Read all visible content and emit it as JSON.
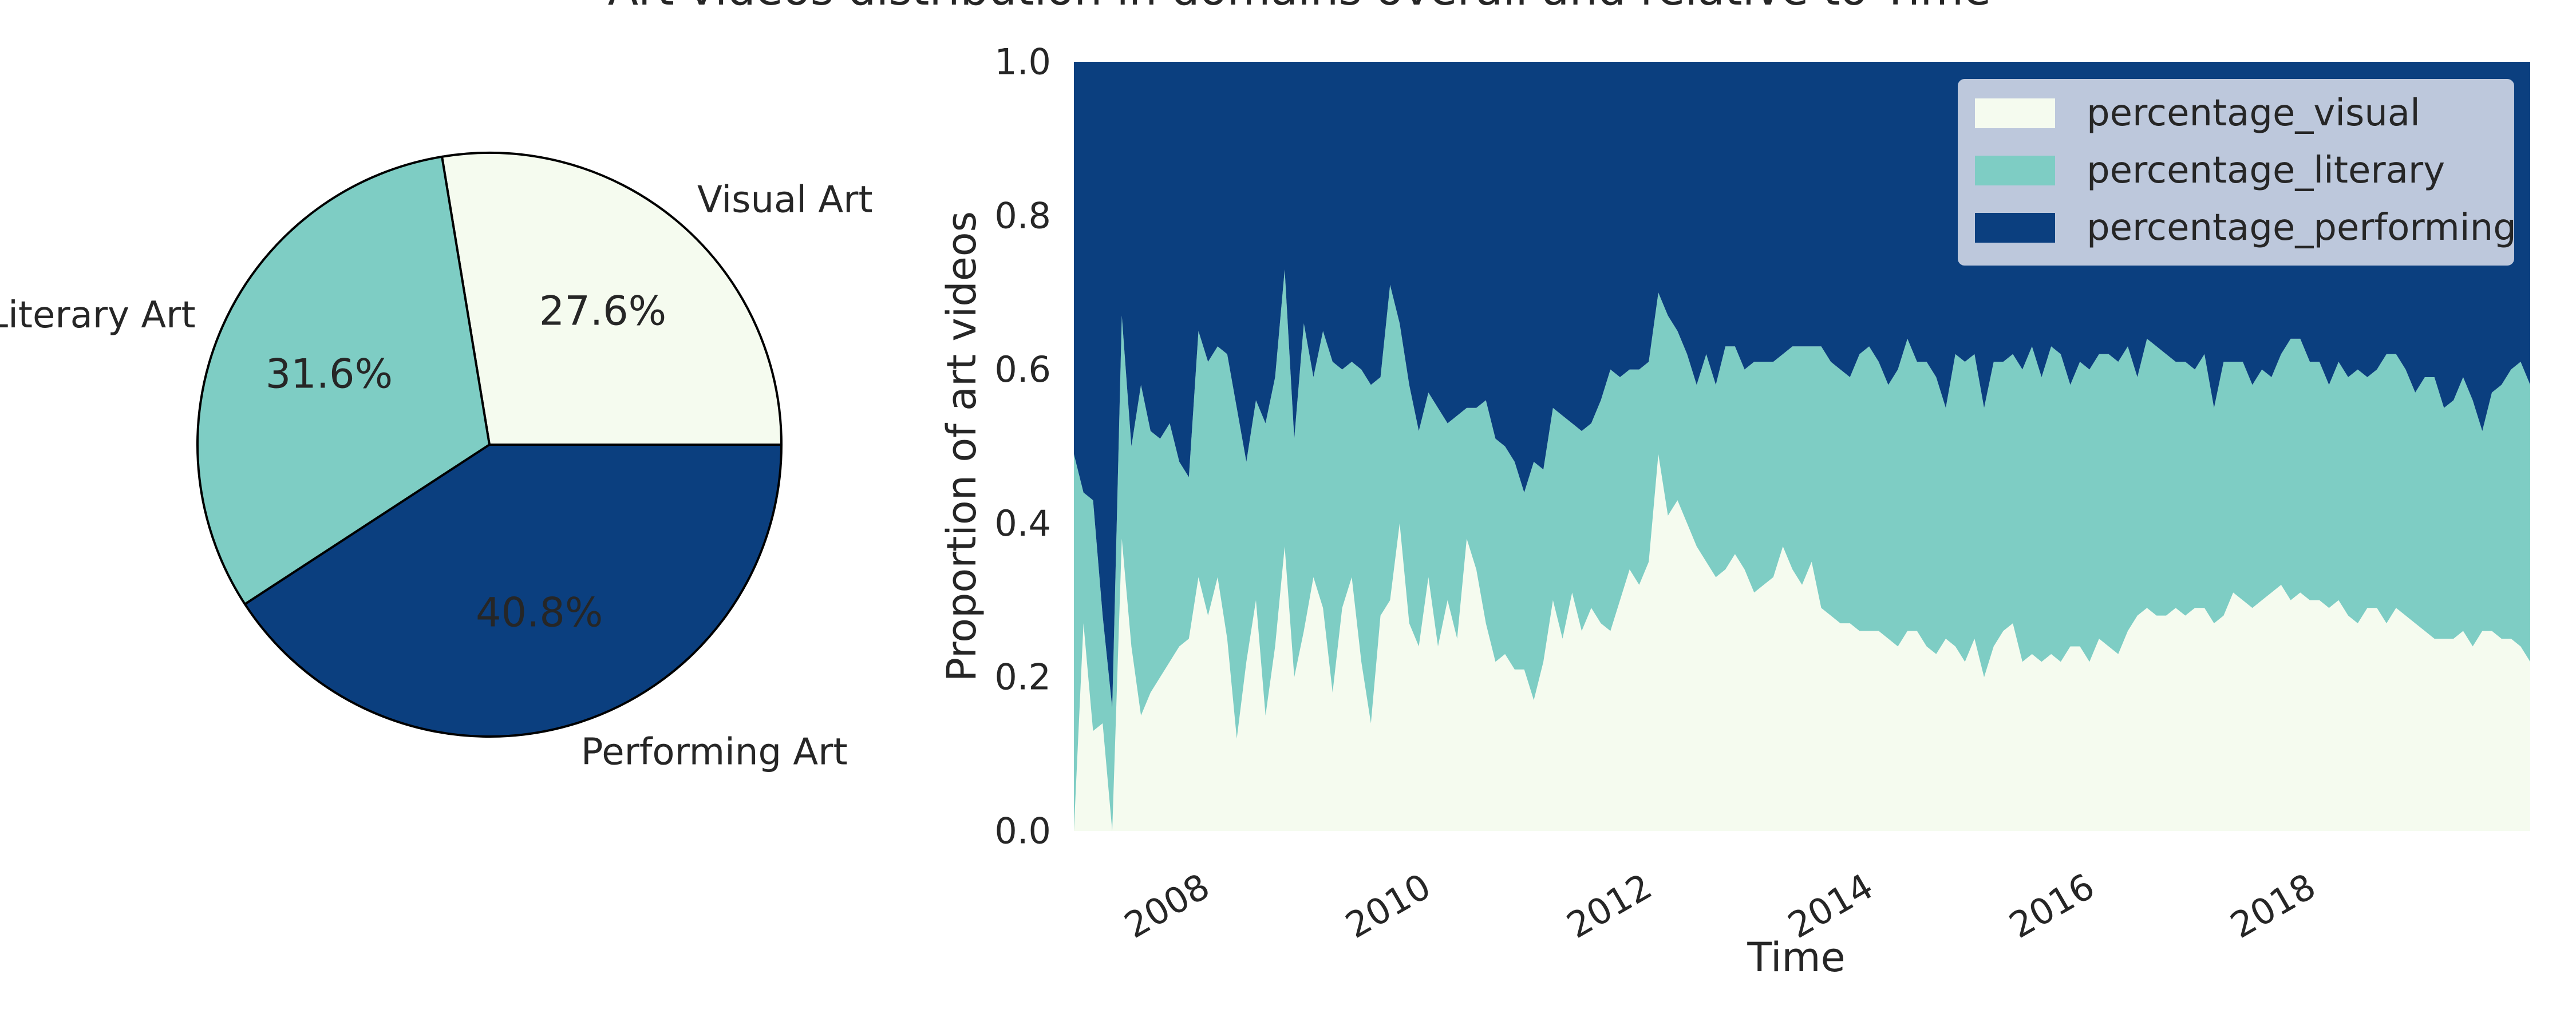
{
  "figure": {
    "title": "Art videos distribution in domains overall and relative to Time"
  },
  "colors": {
    "visual": "#f5fbef",
    "literary": "#7ecdc4",
    "performing": "#0b3f7f",
    "legend_bg": "#bdc8dc",
    "text": "#262626"
  },
  "chart_data": [
    {
      "type": "pie",
      "slices": [
        {
          "label": "Visual Art",
          "value": 27.6,
          "pct_label": "27.6%",
          "color": "#f5fbef"
        },
        {
          "label": "Literary Art",
          "value": 31.6,
          "pct_label": "31.6%",
          "color": "#7ecdc4"
        },
        {
          "label": "Performing Art",
          "value": 40.8,
          "pct_label": "40.8%",
          "color": "#0b3f7f"
        }
      ],
      "start_angle_deg": 0,
      "direction": "counterclockwise",
      "edgecolor": "#000000"
    },
    {
      "type": "area",
      "stacked": true,
      "xlabel": "Time",
      "ylabel": "Proportion of art videos",
      "x_start": "2006-10",
      "x_end": "2019-12",
      "x_step": "month",
      "x_ticks": [
        "2008",
        "2010",
        "2012",
        "2014",
        "2016",
        "2018"
      ],
      "ylim": [
        0,
        1
      ],
      "y_ticks": [
        "0.0",
        "0.2",
        "0.4",
        "0.6",
        "0.8",
        "1.0"
      ],
      "grid": false,
      "legend_position": "top-right",
      "series": [
        {
          "name": "percentage_visual",
          "color": "#f5fbef",
          "values": [
            0.0,
            0.27,
            0.13,
            0.14,
            0.0,
            0.38,
            0.24,
            0.15,
            0.18,
            0.2,
            0.22,
            0.24,
            0.25,
            0.33,
            0.28,
            0.33,
            0.25,
            0.12,
            0.22,
            0.3,
            0.15,
            0.24,
            0.37,
            0.2,
            0.26,
            0.33,
            0.29,
            0.18,
            0.29,
            0.33,
            0.22,
            0.14,
            0.28,
            0.3,
            0.4,
            0.27,
            0.24,
            0.33,
            0.24,
            0.3,
            0.25,
            0.38,
            0.34,
            0.27,
            0.22,
            0.23,
            0.21,
            0.21,
            0.17,
            0.22,
            0.3,
            0.25,
            0.31,
            0.26,
            0.29,
            0.27,
            0.26,
            0.3,
            0.34,
            0.32,
            0.35,
            0.49,
            0.41,
            0.43,
            0.4,
            0.37,
            0.35,
            0.33,
            0.34,
            0.36,
            0.34,
            0.31,
            0.32,
            0.33,
            0.37,
            0.34,
            0.32,
            0.35,
            0.29,
            0.28,
            0.27,
            0.27,
            0.26,
            0.26,
            0.26,
            0.25,
            0.24,
            0.26,
            0.26,
            0.24,
            0.23,
            0.25,
            0.24,
            0.22,
            0.25,
            0.2,
            0.24,
            0.26,
            0.27,
            0.22,
            0.23,
            0.22,
            0.23,
            0.22,
            0.24,
            0.24,
            0.22,
            0.25,
            0.24,
            0.23,
            0.26,
            0.28,
            0.29,
            0.28,
            0.28,
            0.29,
            0.28,
            0.29,
            0.29,
            0.27,
            0.28,
            0.31,
            0.3,
            0.29,
            0.3,
            0.31,
            0.32,
            0.3,
            0.31,
            0.3,
            0.3,
            0.29,
            0.3,
            0.28,
            0.27,
            0.29,
            0.29,
            0.27,
            0.29,
            0.28,
            0.27,
            0.26,
            0.25,
            0.25,
            0.25,
            0.26,
            0.24,
            0.26,
            0.26,
            0.25,
            0.25,
            0.24,
            0.22
          ]
        },
        {
          "name": "percentage_literary",
          "color": "#7ecdc4",
          "values": [
            0.49,
            0.17,
            0.3,
            0.14,
            0.16,
            0.29,
            0.26,
            0.43,
            0.34,
            0.31,
            0.31,
            0.24,
            0.21,
            0.32,
            0.33,
            0.3,
            0.37,
            0.43,
            0.26,
            0.26,
            0.38,
            0.35,
            0.36,
            0.31,
            0.4,
            0.26,
            0.36,
            0.43,
            0.31,
            0.28,
            0.38,
            0.44,
            0.31,
            0.41,
            0.26,
            0.31,
            0.28,
            0.24,
            0.31,
            0.23,
            0.29,
            0.17,
            0.21,
            0.29,
            0.29,
            0.27,
            0.27,
            0.23,
            0.31,
            0.25,
            0.25,
            0.29,
            0.22,
            0.26,
            0.24,
            0.29,
            0.34,
            0.29,
            0.26,
            0.28,
            0.26,
            0.21,
            0.26,
            0.22,
            0.22,
            0.21,
            0.27,
            0.25,
            0.29,
            0.27,
            0.26,
            0.3,
            0.29,
            0.28,
            0.25,
            0.29,
            0.31,
            0.28,
            0.34,
            0.33,
            0.33,
            0.32,
            0.36,
            0.37,
            0.35,
            0.33,
            0.36,
            0.38,
            0.35,
            0.37,
            0.36,
            0.3,
            0.38,
            0.39,
            0.37,
            0.35,
            0.37,
            0.35,
            0.35,
            0.38,
            0.4,
            0.37,
            0.4,
            0.4,
            0.34,
            0.37,
            0.38,
            0.37,
            0.38,
            0.38,
            0.37,
            0.31,
            0.35,
            0.35,
            0.34,
            0.32,
            0.33,
            0.31,
            0.33,
            0.28,
            0.33,
            0.3,
            0.31,
            0.29,
            0.3,
            0.28,
            0.3,
            0.34,
            0.33,
            0.31,
            0.31,
            0.29,
            0.31,
            0.31,
            0.33,
            0.3,
            0.31,
            0.35,
            0.33,
            0.32,
            0.3,
            0.33,
            0.34,
            0.3,
            0.31,
            0.33,
            0.32,
            0.26,
            0.31,
            0.33,
            0.35,
            0.37,
            0.36
          ]
        },
        {
          "name": "percentage_performing",
          "color": "#0b3f7f",
          "values": [
            0.51,
            0.56,
            0.57,
            0.72,
            0.84,
            0.33,
            0.5,
            0.42,
            0.48,
            0.49,
            0.47,
            0.52,
            0.54,
            0.35,
            0.39,
            0.37,
            0.38,
            0.45,
            0.52,
            0.44,
            0.47,
            0.41,
            0.27,
            0.49,
            0.34,
            0.41,
            0.35,
            0.39,
            0.4,
            0.39,
            0.4,
            0.42,
            0.41,
            0.29,
            0.34,
            0.42,
            0.48,
            0.43,
            0.45,
            0.47,
            0.46,
            0.45,
            0.45,
            0.44,
            0.49,
            0.5,
            0.52,
            0.56,
            0.52,
            0.53,
            0.45,
            0.46,
            0.47,
            0.48,
            0.47,
            0.44,
            0.4,
            0.41,
            0.4,
            0.4,
            0.39,
            0.3,
            0.33,
            0.35,
            0.38,
            0.42,
            0.38,
            0.42,
            0.37,
            0.37,
            0.4,
            0.39,
            0.39,
            0.39,
            0.38,
            0.37,
            0.37,
            0.37,
            0.37,
            0.39,
            0.4,
            0.41,
            0.38,
            0.37,
            0.39,
            0.42,
            0.4,
            0.36,
            0.39,
            0.39,
            0.41,
            0.45,
            0.38,
            0.39,
            0.38,
            0.45,
            0.39,
            0.39,
            0.38,
            0.4,
            0.37,
            0.41,
            0.37,
            0.38,
            0.42,
            0.39,
            0.4,
            0.38,
            0.38,
            0.39,
            0.37,
            0.41,
            0.36,
            0.37,
            0.38,
            0.39,
            0.39,
            0.4,
            0.38,
            0.45,
            0.39,
            0.39,
            0.39,
            0.42,
            0.4,
            0.41,
            0.38,
            0.36,
            0.36,
            0.39,
            0.39,
            0.4,
            0.39,
            0.41,
            0.4,
            0.41,
            0.4,
            0.38,
            0.39,
            0.4,
            0.42,
            0.41,
            0.38,
            0.44,
            0.43,
            0.41,
            0.45,
            0.44,
            0.43,
            0.39,
            0.39,
            0.4,
            0.42
          ]
        }
      ]
    }
  ]
}
